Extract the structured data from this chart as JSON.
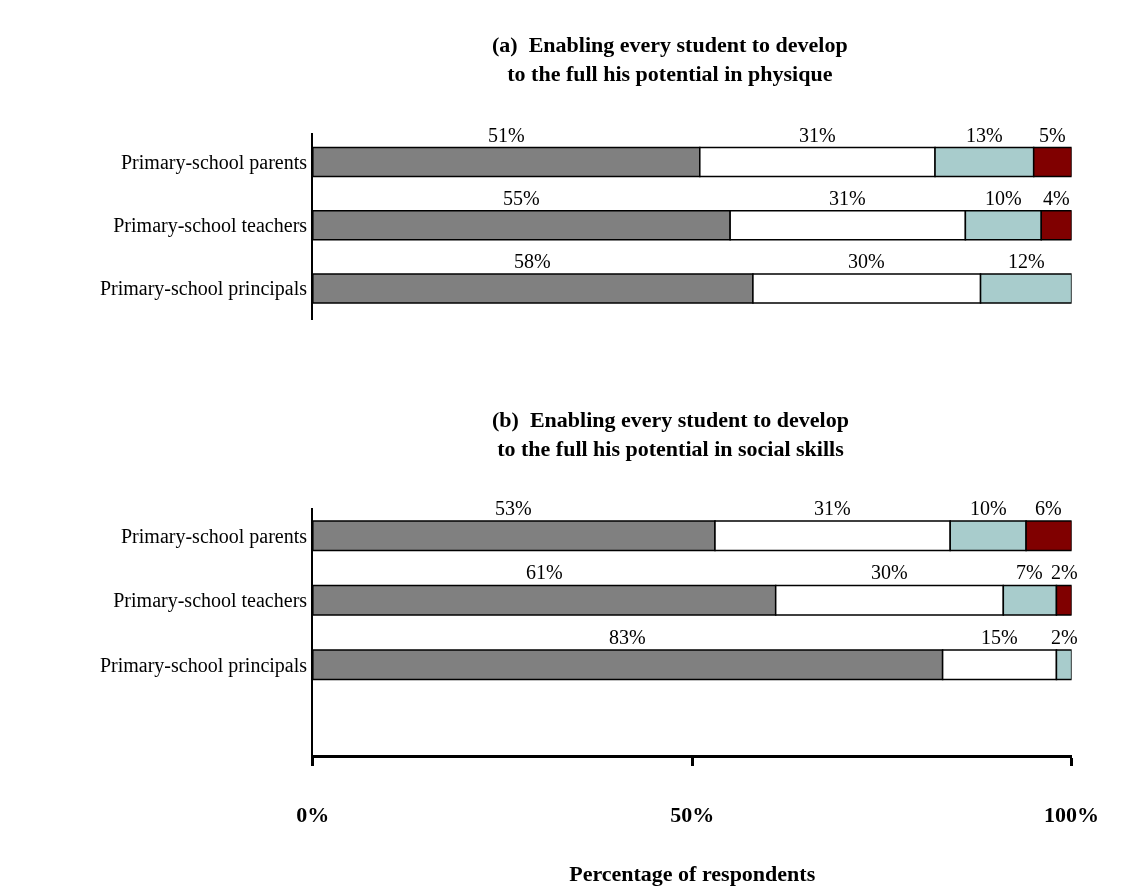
{
  "chart_data": [
    {
      "type": "bar",
      "orientation": "horizontal",
      "stacked": true,
      "title": "(a)  Enabling every student to develop\nto the full his potential in physique",
      "categories": [
        "Primary-school parents",
        "Primary-school teachers",
        "Primary-school principals"
      ],
      "series": [
        {
          "color": "#808080",
          "values": [
            51,
            55,
            58
          ],
          "value_labels": [
            "51%",
            "55%",
            "58%"
          ]
        },
        {
          "color": "#ffffff",
          "values": [
            31,
            31,
            30
          ],
          "value_labels": [
            "31%",
            "31%",
            "30%"
          ]
        },
        {
          "color": "#a8cccc",
          "values": [
            13,
            10,
            12
          ],
          "value_labels": [
            "13%",
            "10%",
            "12%"
          ]
        },
        {
          "color": "#800000",
          "values": [
            5,
            4,
            null
          ],
          "value_labels": [
            "5%",
            "4%",
            null
          ]
        }
      ],
      "xlim": [
        0,
        100
      ],
      "tick_labels": "y"
    },
    {
      "type": "bar",
      "orientation": "horizontal",
      "stacked": true,
      "title": "(b)  Enabling every student to develop\nto the full his potential in social skills",
      "xlabel": "Percentage of respondents",
      "categories": [
        "Primary-school parents",
        "Primary-school teachers",
        "Primary-school principals"
      ],
      "series": [
        {
          "color": "#808080",
          "values": [
            53,
            61,
            83
          ],
          "value_labels": [
            "53%",
            "61%",
            "83%"
          ]
        },
        {
          "color": "#ffffff",
          "values": [
            31,
            30,
            15
          ],
          "value_labels": [
            "31%",
            "30%",
            "15%"
          ]
        },
        {
          "color": "#a8cccc",
          "values": [
            10,
            7,
            2
          ],
          "value_labels": [
            "10%",
            "7%",
            "2%"
          ]
        },
        {
          "color": "#800000",
          "values": [
            6,
            2,
            null
          ],
          "value_labels": [
            "6%",
            "2%",
            null
          ]
        }
      ],
      "xlim": [
        0,
        100
      ],
      "xticks": [
        {
          "value": 0,
          "label": "0%"
        },
        {
          "value": 50,
          "label": "50%"
        },
        {
          "value": 100,
          "label": "100%"
        }
      ]
    }
  ]
}
